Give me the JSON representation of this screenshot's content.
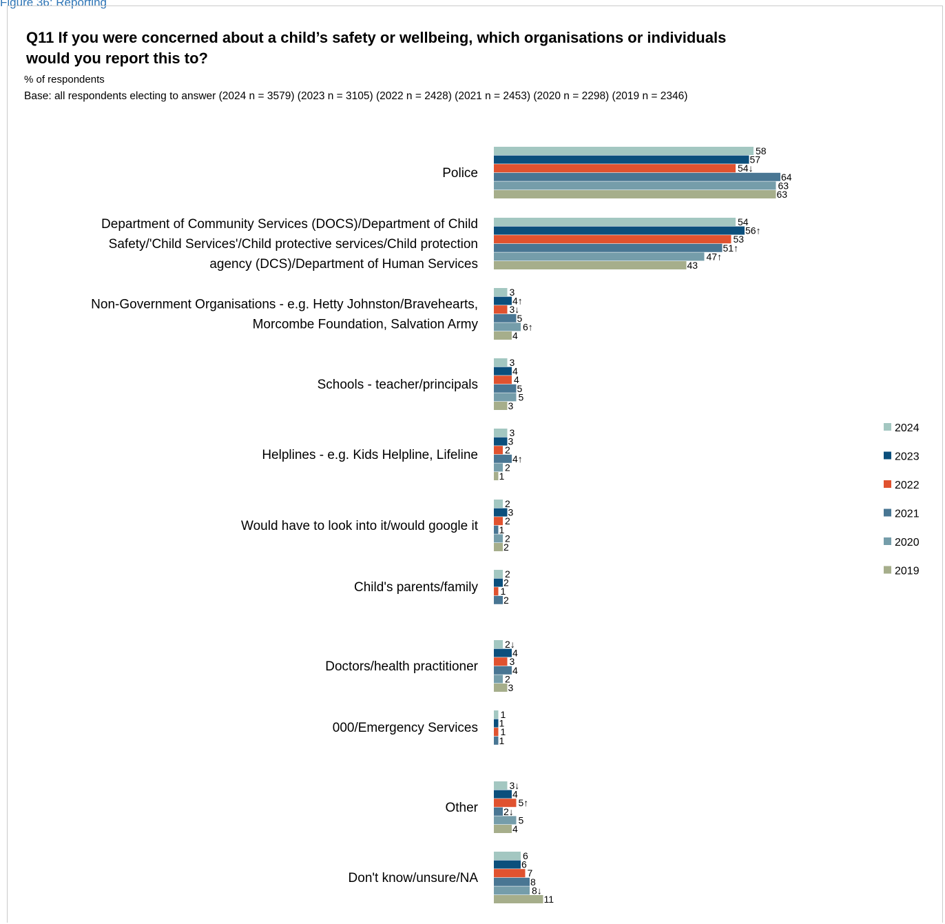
{
  "caption": "Figure 36: Reporting",
  "chart_data": {
    "type": "bar",
    "orientation": "horizontal",
    "title": "Q11 If you were concerned about a child’s safety or wellbeing, which organisations or individuals would you report this to?",
    "subtitle": "% of respondents",
    "base_note": "Base: all respondents electing to answer (2024 n = 3579) (2023 n = 3105) (2022 n = 2428) (2021 n = 2453) (2020 n = 2298) (2019 n = 2346)",
    "categories": [
      [
        "Police"
      ],
      [
        "Department of Community Services (DOCS)/Department of Child",
        "Safety/'Child Services'/Child protective services/Child protection",
        "agency (DCS)/Department of Human Services"
      ],
      [
        "Non-Government Organisations - e.g. Hetty Johnston/Bravehearts,",
        "Morcombe Foundation, Salvation Army"
      ],
      [
        "Schools - teacher/principals"
      ],
      [
        "Helplines - e.g. Kids Helpline, Lifeline"
      ],
      [
        "Would have to look into it/would google it"
      ],
      [
        "Child's parents/family"
      ],
      [
        "Doctors/health practitioner"
      ],
      [
        "000/Emergency Services"
      ],
      [
        "Other"
      ],
      [
        "Don't know/unsure/NA"
      ]
    ],
    "series": [
      {
        "name": "2024",
        "color": "#a3c7c1",
        "values": [
          58,
          54,
          3,
          3,
          3,
          2,
          2,
          2,
          1,
          3,
          6
        ],
        "flags": [
          "",
          "",
          "",
          "",
          "",
          "",
          "",
          "down",
          "",
          "down",
          ""
        ]
      },
      {
        "name": "2023",
        "color": "#0b4f7c",
        "values": [
          57,
          56,
          4,
          4,
          3,
          3,
          2,
          4,
          1,
          4,
          6
        ],
        "flags": [
          "",
          "up",
          "up",
          "",
          "",
          "",
          "",
          "",
          "",
          "",
          ""
        ]
      },
      {
        "name": "2022",
        "color": "#e0522f",
        "values": [
          54,
          53,
          3,
          4,
          2,
          2,
          1,
          3,
          1,
          5,
          7
        ],
        "flags": [
          "down",
          "",
          "down",
          "",
          "",
          "",
          "",
          "",
          "",
          "up",
          ""
        ]
      },
      {
        "name": "2021",
        "color": "#497693",
        "values": [
          64,
          51,
          5,
          5,
          4,
          1,
          2,
          4,
          1,
          2,
          8
        ],
        "flags": [
          "",
          "up",
          "",
          "",
          "up",
          "",
          "",
          "",
          "",
          "down",
          ""
        ]
      },
      {
        "name": "2020",
        "color": "#759daa",
        "values": [
          63,
          47,
          6,
          5,
          2,
          2,
          null,
          2,
          null,
          5,
          8
        ],
        "flags": [
          "",
          "up",
          "up",
          "",
          "",
          "",
          "",
          "",
          "",
          "",
          "down"
        ]
      },
      {
        "name": "2019",
        "color": "#a6ae8b",
        "values": [
          63,
          43,
          4,
          3,
          1,
          2,
          null,
          3,
          null,
          4,
          11
        ],
        "flags": [
          "",
          "",
          "",
          "",
          "",
          "",
          "",
          "",
          "",
          "",
          ""
        ]
      }
    ],
    "legend_position": "right",
    "grid": false
  }
}
